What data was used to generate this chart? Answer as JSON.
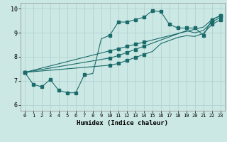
{
  "xlabel": "Humidex (Indice chaleur)",
  "background_color": "#cce8e4",
  "grid_color": "#aacfcc",
  "line_color": "#1a6b6b",
  "xlim": [
    -0.5,
    23.5
  ],
  "ylim": [
    5.75,
    10.25
  ],
  "xticks": [
    0,
    1,
    2,
    3,
    4,
    5,
    6,
    7,
    8,
    9,
    10,
    11,
    12,
    13,
    14,
    15,
    16,
    17,
    18,
    19,
    20,
    21,
    22,
    23
  ],
  "yticks": [
    6,
    7,
    8,
    9,
    10
  ],
  "line1_x": [
    0,
    1,
    2,
    3,
    4,
    5,
    6,
    7,
    8,
    9,
    10,
    11,
    12,
    13,
    14,
    15,
    16,
    17,
    18,
    19,
    20,
    21,
    22,
    23
  ],
  "line1_y": [
    7.35,
    6.85,
    6.75,
    7.05,
    6.6,
    6.5,
    6.5,
    7.25,
    7.3,
    8.75,
    8.9,
    9.45,
    9.45,
    9.55,
    9.65,
    9.92,
    9.88,
    9.35,
    9.2,
    9.2,
    9.2,
    8.9,
    9.55,
    9.72
  ],
  "line2_x": [
    0,
    1,
    2,
    3,
    4,
    5,
    6,
    7,
    8,
    9,
    10,
    11,
    12,
    13,
    14,
    15,
    16,
    17,
    18,
    19,
    20,
    21,
    22,
    23
  ],
  "line2_y": [
    7.35,
    7.44,
    7.53,
    7.62,
    7.71,
    7.8,
    7.89,
    7.98,
    8.07,
    8.16,
    8.25,
    8.34,
    8.43,
    8.52,
    8.61,
    8.7,
    8.79,
    8.88,
    8.97,
    9.06,
    9.15,
    9.24,
    9.55,
    9.72
  ],
  "line3_x": [
    0,
    1,
    2,
    3,
    4,
    5,
    6,
    7,
    8,
    9,
    10,
    11,
    12,
    13,
    14,
    15,
    16,
    17,
    18,
    19,
    20,
    21,
    22,
    23
  ],
  "line3_y": [
    7.35,
    7.41,
    7.47,
    7.53,
    7.59,
    7.65,
    7.71,
    7.77,
    7.83,
    7.89,
    7.95,
    8.05,
    8.18,
    8.31,
    8.44,
    8.57,
    8.7,
    8.83,
    8.96,
    9.09,
    9.0,
    9.1,
    9.45,
    9.65
  ],
  "line4_x": [
    0,
    1,
    2,
    3,
    4,
    5,
    6,
    7,
    8,
    9,
    10,
    11,
    12,
    13,
    14,
    15,
    16,
    17,
    18,
    19,
    20,
    21,
    22,
    23
  ],
  "line4_y": [
    7.35,
    7.38,
    7.41,
    7.44,
    7.47,
    7.5,
    7.53,
    7.56,
    7.59,
    7.62,
    7.65,
    7.72,
    7.85,
    7.97,
    8.1,
    8.22,
    8.55,
    8.68,
    8.81,
    8.88,
    8.85,
    8.98,
    9.35,
    9.55
  ],
  "marker_x1": [
    0,
    1,
    2,
    3,
    4,
    5,
    6,
    7,
    10,
    11,
    12,
    13,
    14,
    15,
    16,
    17,
    18,
    19,
    20,
    21,
    22,
    23
  ],
  "marker_y1": [
    7.35,
    6.85,
    6.75,
    7.05,
    6.6,
    6.5,
    6.5,
    7.25,
    8.9,
    9.45,
    9.45,
    9.55,
    9.65,
    9.92,
    9.88,
    9.35,
    9.2,
    9.2,
    9.2,
    8.9,
    9.55,
    9.72
  ],
  "marker_x2": [
    0,
    10,
    11,
    12,
    13,
    14,
    22,
    23
  ],
  "marker_y2": [
    7.35,
    8.25,
    8.34,
    8.43,
    8.52,
    8.61,
    9.55,
    9.72
  ],
  "marker_x3": [
    0,
    10,
    11,
    12,
    13,
    14,
    22,
    23
  ],
  "marker_y3": [
    7.35,
    7.95,
    8.05,
    8.18,
    8.31,
    8.44,
    9.45,
    9.65
  ],
  "marker_x4": [
    0,
    10,
    11,
    12,
    13,
    14,
    22,
    23
  ],
  "marker_y4": [
    7.35,
    7.65,
    7.72,
    7.85,
    7.97,
    8.1,
    9.35,
    9.55
  ]
}
